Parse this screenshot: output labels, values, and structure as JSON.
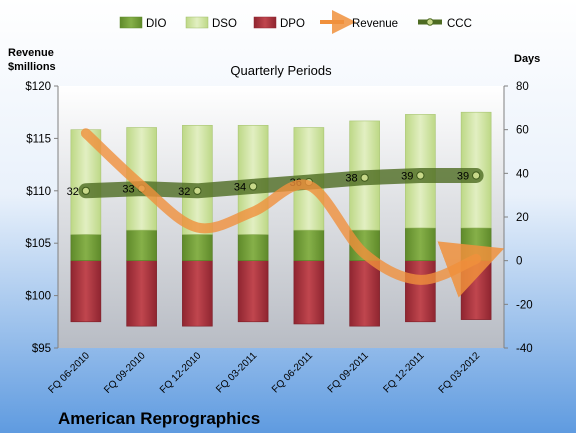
{
  "chart_data": {
    "type": "bar",
    "title": "Quarterly Periods",
    "company": "American Reprographics",
    "left_axis_label_line1": "Revenue",
    "left_axis_label_line2": "$millions",
    "right_axis_label": "Days",
    "left_ylim": [
      95,
      120
    ],
    "left_ticks": [
      "$95",
      "$100",
      "$105",
      "$110",
      "$115",
      "$120"
    ],
    "left_tick_values": [
      95,
      100,
      105,
      110,
      115,
      120
    ],
    "right_ylim": [
      -40,
      80
    ],
    "right_ticks": [
      "-40",
      "-20",
      "0",
      "20",
      "40",
      "60",
      "80"
    ],
    "right_tick_values": [
      -40,
      -20,
      0,
      20,
      40,
      60,
      80
    ],
    "categories": [
      "FQ 06-2010",
      "FQ 09-2010",
      "FQ 12-2010",
      "FQ 03-2011",
      "FQ 06-2011",
      "FQ 09-2011",
      "FQ 12-2011",
      "FQ 03-2012"
    ],
    "legend": [
      "DIO",
      "DSO",
      "DPO",
      "Revenue",
      "CCC"
    ],
    "legend_placement": "top",
    "grid": false,
    "series": [
      {
        "name": "DIO",
        "axis": "right",
        "values": [
          12,
          14,
          12,
          12,
          14,
          14,
          15,
          15
        ]
      },
      {
        "name": "DSO",
        "axis": "right",
        "values": [
          48,
          47,
          50,
          50,
          47,
          50,
          52,
          53
        ]
      },
      {
        "name": "DPO",
        "axis": "right",
        "values": [
          -28,
          -30,
          -30,
          -28,
          -29,
          -30,
          -28,
          -27
        ]
      },
      {
        "name": "CCC",
        "axis": "right",
        "values": [
          32,
          33,
          32,
          34,
          36,
          38,
          39,
          39
        ]
      },
      {
        "name": "Revenue",
        "axis": "left",
        "values": [
          115.5,
          110.5,
          106.5,
          108,
          110.5,
          104,
          101.5,
          103.5
        ]
      }
    ],
    "ccc_labels": [
      "32",
      "33",
      "32",
      "34",
      "36",
      "38",
      "39",
      "39"
    ],
    "colors": {
      "DIO": "#6e9a34",
      "DSO": "#cfe39c",
      "DPO": "#a9343b",
      "Revenue": "#f0903c",
      "CCC": "#4d6b22",
      "plot_top": "#ffffff",
      "plot_bottom": "#b8bcc4",
      "page_top": "#ffffff",
      "page_bottom": "#5f9be0"
    }
  }
}
